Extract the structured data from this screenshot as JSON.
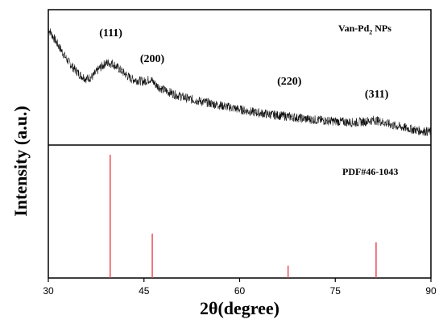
{
  "chart_data": [
    {
      "type": "line",
      "panel": "top",
      "legend_label": "Van-Pd",
      "legend_sub": "2",
      "legend_suffix": " NPs",
      "series": [
        {
          "x": [
            30,
            31,
            32,
            33,
            34,
            35,
            36,
            37,
            38,
            39,
            40,
            41,
            42,
            43,
            44,
            45,
            46,
            47,
            48,
            50,
            52,
            55,
            58,
            60,
            62,
            65,
            67,
            70,
            72,
            75,
            78,
            80,
            81,
            82,
            84,
            86,
            88,
            90
          ],
          "y": [
            0.88,
            0.8,
            0.72,
            0.64,
            0.58,
            0.53,
            0.5,
            0.52,
            0.58,
            0.62,
            0.62,
            0.58,
            0.54,
            0.5,
            0.49,
            0.48,
            0.5,
            0.45,
            0.42,
            0.38,
            0.35,
            0.32,
            0.29,
            0.27,
            0.25,
            0.23,
            0.22,
            0.2,
            0.19,
            0.18,
            0.17,
            0.18,
            0.19,
            0.18,
            0.15,
            0.13,
            0.11,
            0.1
          ]
        }
      ],
      "annotations": [
        {
          "text": "(111)",
          "x": 39.8
        },
        {
          "text": "(200)",
          "x": 46.3
        },
        {
          "text": "(220)",
          "x": 67.8
        },
        {
          "text": "(311)",
          "x": 81.5
        }
      ]
    },
    {
      "type": "bar",
      "panel": "bottom",
      "legend_label": "PDF#46-1043",
      "color": "#e8434a",
      "x": [
        39.7,
        46.3,
        67.6,
        81.4
      ],
      "values": [
        100,
        36,
        10,
        29
      ]
    }
  ],
  "axes": {
    "xlabel": "2θ(degree)",
    "ylabel": "Intensity (a.u.)",
    "xlim": [
      30,
      90
    ],
    "xticks": [
      "30",
      "45",
      "60",
      "75",
      "90"
    ]
  }
}
